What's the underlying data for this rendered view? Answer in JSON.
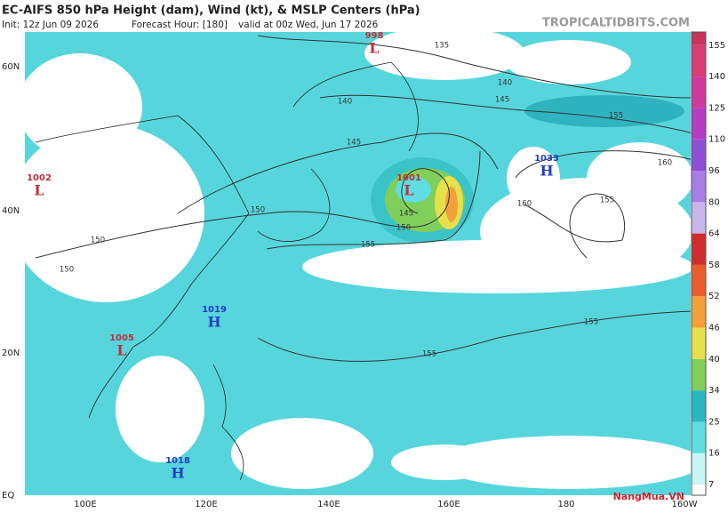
{
  "header": {
    "title": "EC-AIFS 850 hPa Height (dam), Wind (kt), & MSLP Centers (hPa)",
    "init": "Init: 12z Jun 09 2026",
    "forecast_hour": "Forecast Hour: [180]",
    "valid": "valid at 00z Wed, Jun 17 2026",
    "logo": "TROPICALTIDBITS.COM"
  },
  "latitude_labels": [
    "60N",
    "40N",
    "20N",
    "EQ"
  ],
  "longitude_labels": [
    "100E",
    "120E",
    "140E",
    "160E",
    "180",
    "160W"
  ],
  "colorbar": {
    "labels": [
      "7",
      "16",
      "25",
      "34",
      "40",
      "46",
      "52",
      "58",
      "64",
      "80",
      "96",
      "110",
      "125",
      "140",
      "155"
    ],
    "colors": [
      "#ffffff",
      "#c8f4f4",
      "#5fdde0",
      "#2bb7c2",
      "#7fcf5a",
      "#e6e04a",
      "#f2a13a",
      "#ea5d2c",
      "#cf2d2d",
      "#c9b4ec",
      "#a77de6",
      "#8e4fd6",
      "#b43dc3",
      "#cf3a9a",
      "#d83e72",
      "#c8345c"
    ]
  },
  "pressure_centers": [
    {
      "type": "L",
      "value": "998"
    },
    {
      "type": "L",
      "value": "1002"
    },
    {
      "type": "L",
      "value": "1001"
    },
    {
      "type": "H",
      "value": "1033"
    },
    {
      "type": "H",
      "value": "1019"
    },
    {
      "type": "L",
      "value": "1005"
    },
    {
      "type": "H",
      "value": "1018"
    }
  ],
  "contour_labels": [
    "135",
    "140",
    "140",
    "145",
    "145",
    "150",
    "150",
    "150",
    "145",
    "150",
    "155",
    "155",
    "160",
    "160",
    "155",
    "155",
    "155"
  ],
  "watermark": "NangMua.VN"
}
